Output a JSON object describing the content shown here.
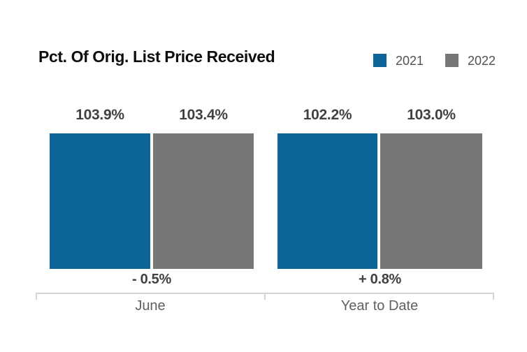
{
  "title": "Pct. Of Orig. List Price Received",
  "legend": {
    "items": [
      {
        "label": "2021",
        "color": "#0d6597"
      },
      {
        "label": "2022",
        "color": "#77777a"
      }
    ]
  },
  "chart_data": {
    "type": "bar",
    "title": "Pct. Of Orig. List Price Received",
    "categories": [
      "June",
      "Year to Date"
    ],
    "series": [
      {
        "name": "2021",
        "color": "#0d6597",
        "values": [
          103.9,
          102.2
        ]
      },
      {
        "name": "2022",
        "color": "#77777a",
        "values": [
          103.4,
          103.0
        ]
      }
    ],
    "value_labels": {
      "s2021": [
        "103.9%",
        "102.2%"
      ],
      "s2022": [
        "103.4%",
        "103.0%"
      ]
    },
    "change_labels": [
      "- 0.5%",
      "+ 0.8%"
    ],
    "ylim": [
      0,
      104
    ],
    "grid": false,
    "legend_position": "top-right"
  },
  "groups": [
    {
      "category": "June",
      "change": "- 0.5%",
      "bars": [
        {
          "series": "2021",
          "label": "103.9%",
          "value": 103.9,
          "color": "#0d6597"
        },
        {
          "series": "2022",
          "label": "103.4%",
          "value": 103.4,
          "color": "#77777a"
        }
      ]
    },
    {
      "category": "Year to Date",
      "change": "+ 0.8%",
      "bars": [
        {
          "series": "2021",
          "label": "102.2%",
          "value": 102.2,
          "color": "#0d6597"
        },
        {
          "series": "2022",
          "label": "103.0%",
          "value": 103.0,
          "color": "#77777a"
        }
      ]
    }
  ],
  "colors": {
    "series_2021": "#0d6597",
    "series_2022": "#77777a",
    "value_label_text": "#414045",
    "change_label_text": "#414045",
    "category_text": "#606064",
    "legend_text": "#515154",
    "axis_line": "#d5d5d5",
    "background": "#ffffff"
  }
}
